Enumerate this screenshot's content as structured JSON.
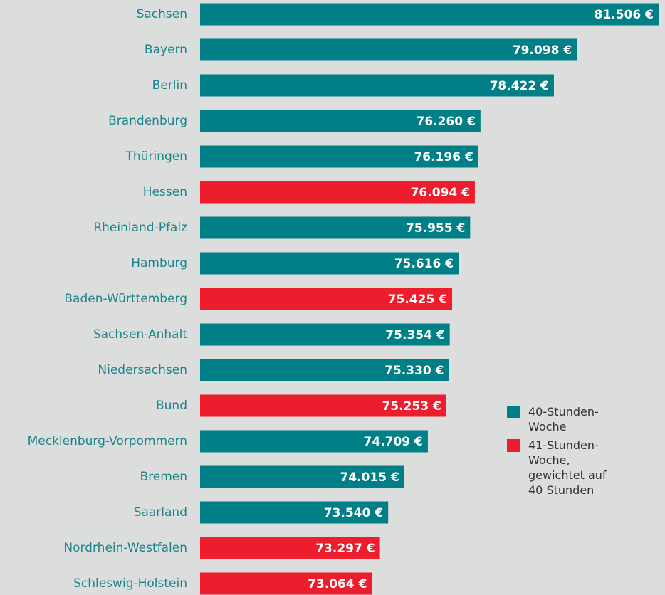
{
  "chart_data": {
    "type": "bar",
    "orientation": "horizontal",
    "categories": [
      "Sachsen",
      "Bayern",
      "Berlin",
      "Brandenburg",
      "Thüringen",
      "Hessen",
      "Rheinland-Pfalz",
      "Hamburg",
      "Baden-Württemberg",
      "Sachsen-Anhalt",
      "Niedersachsen",
      "Bund",
      "Mecklenburg-Vorpommern",
      "Bremen",
      "Saarland",
      "Nordrhein-Westfalen",
      "Schleswig-Holstein"
    ],
    "series": [
      {
        "name": "40-Stunden-Woche",
        "color": "#007f86",
        "values": [
          81506,
          79098,
          78422,
          76260,
          76196,
          null,
          75955,
          75616,
          null,
          75354,
          75330,
          null,
          74709,
          74015,
          73540,
          null,
          null
        ],
        "value_labels": [
          "81.506 €",
          "79.098 €",
          "78.422 €",
          "76.260 €",
          "76.196 €",
          null,
          "75.955 €",
          "75.616 €",
          null,
          "75.354 €",
          "75.330 €",
          null,
          "74.709 €",
          "74.015 €",
          "73.540 €",
          null,
          null
        ]
      },
      {
        "name": "41-Stunden-Woche, gewichtet auf 40 Stunden",
        "color": "#ee1d2e",
        "values": [
          null,
          null,
          null,
          null,
          null,
          76094,
          null,
          null,
          75425,
          null,
          null,
          75253,
          null,
          null,
          null,
          73297,
          73064
        ],
        "value_labels": [
          null,
          null,
          null,
          null,
          null,
          "76.094 €",
          null,
          null,
          "75.425 €",
          null,
          null,
          "75.253 €",
          null,
          null,
          null,
          "73.297 €",
          "73.064 €"
        ]
      }
    ],
    "xlim": [
      68000,
      81506
    ]
  }
}
